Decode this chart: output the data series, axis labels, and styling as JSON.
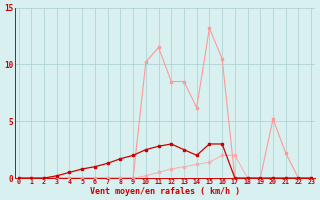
{
  "x": [
    0,
    1,
    2,
    3,
    4,
    5,
    6,
    7,
    8,
    9,
    10,
    11,
    12,
    13,
    14,
    15,
    16,
    17,
    18,
    19,
    20,
    21,
    22,
    23
  ],
  "rafales": [
    0,
    0,
    0,
    0,
    0,
    0,
    0,
    0,
    0,
    0,
    10.2,
    11.5,
    8.5,
    8.5,
    6.2,
    13.2,
    10.5,
    0,
    0,
    0,
    5.2,
    2.2,
    0,
    0
  ],
  "moyen": [
    0,
    0,
    0,
    0.2,
    0.5,
    0.8,
    1.0,
    1.3,
    1.7,
    2.0,
    2.5,
    2.8,
    3.0,
    2.5,
    2.0,
    3.0,
    3.0,
    0,
    0,
    0,
    0,
    0,
    0,
    0
  ],
  "flat": [
    0,
    0,
    0,
    0,
    0,
    0,
    0,
    0,
    0,
    0,
    0.2,
    0.5,
    0.8,
    1.0,
    1.2,
    1.4,
    2.0,
    2.0,
    0,
    0,
    0,
    0,
    0,
    0
  ],
  "ylim": [
    0,
    15
  ],
  "yticks": [
    0,
    5,
    10,
    15
  ],
  "xticks": [
    0,
    1,
    2,
    3,
    4,
    5,
    6,
    7,
    8,
    9,
    10,
    11,
    12,
    13,
    14,
    15,
    16,
    17,
    18,
    19,
    20,
    21,
    22,
    23
  ],
  "bg_color": "#d8f0f0",
  "grid_color": "#aacece",
  "rafales_color": "#ff9999",
  "moyen_color": "#cc0000",
  "flat_color": "#ffaaaa",
  "tick_color": "#cc0000",
  "label_color": "#cc0000",
  "xlabel": "Vent moyen/en rafales ( km/h )"
}
